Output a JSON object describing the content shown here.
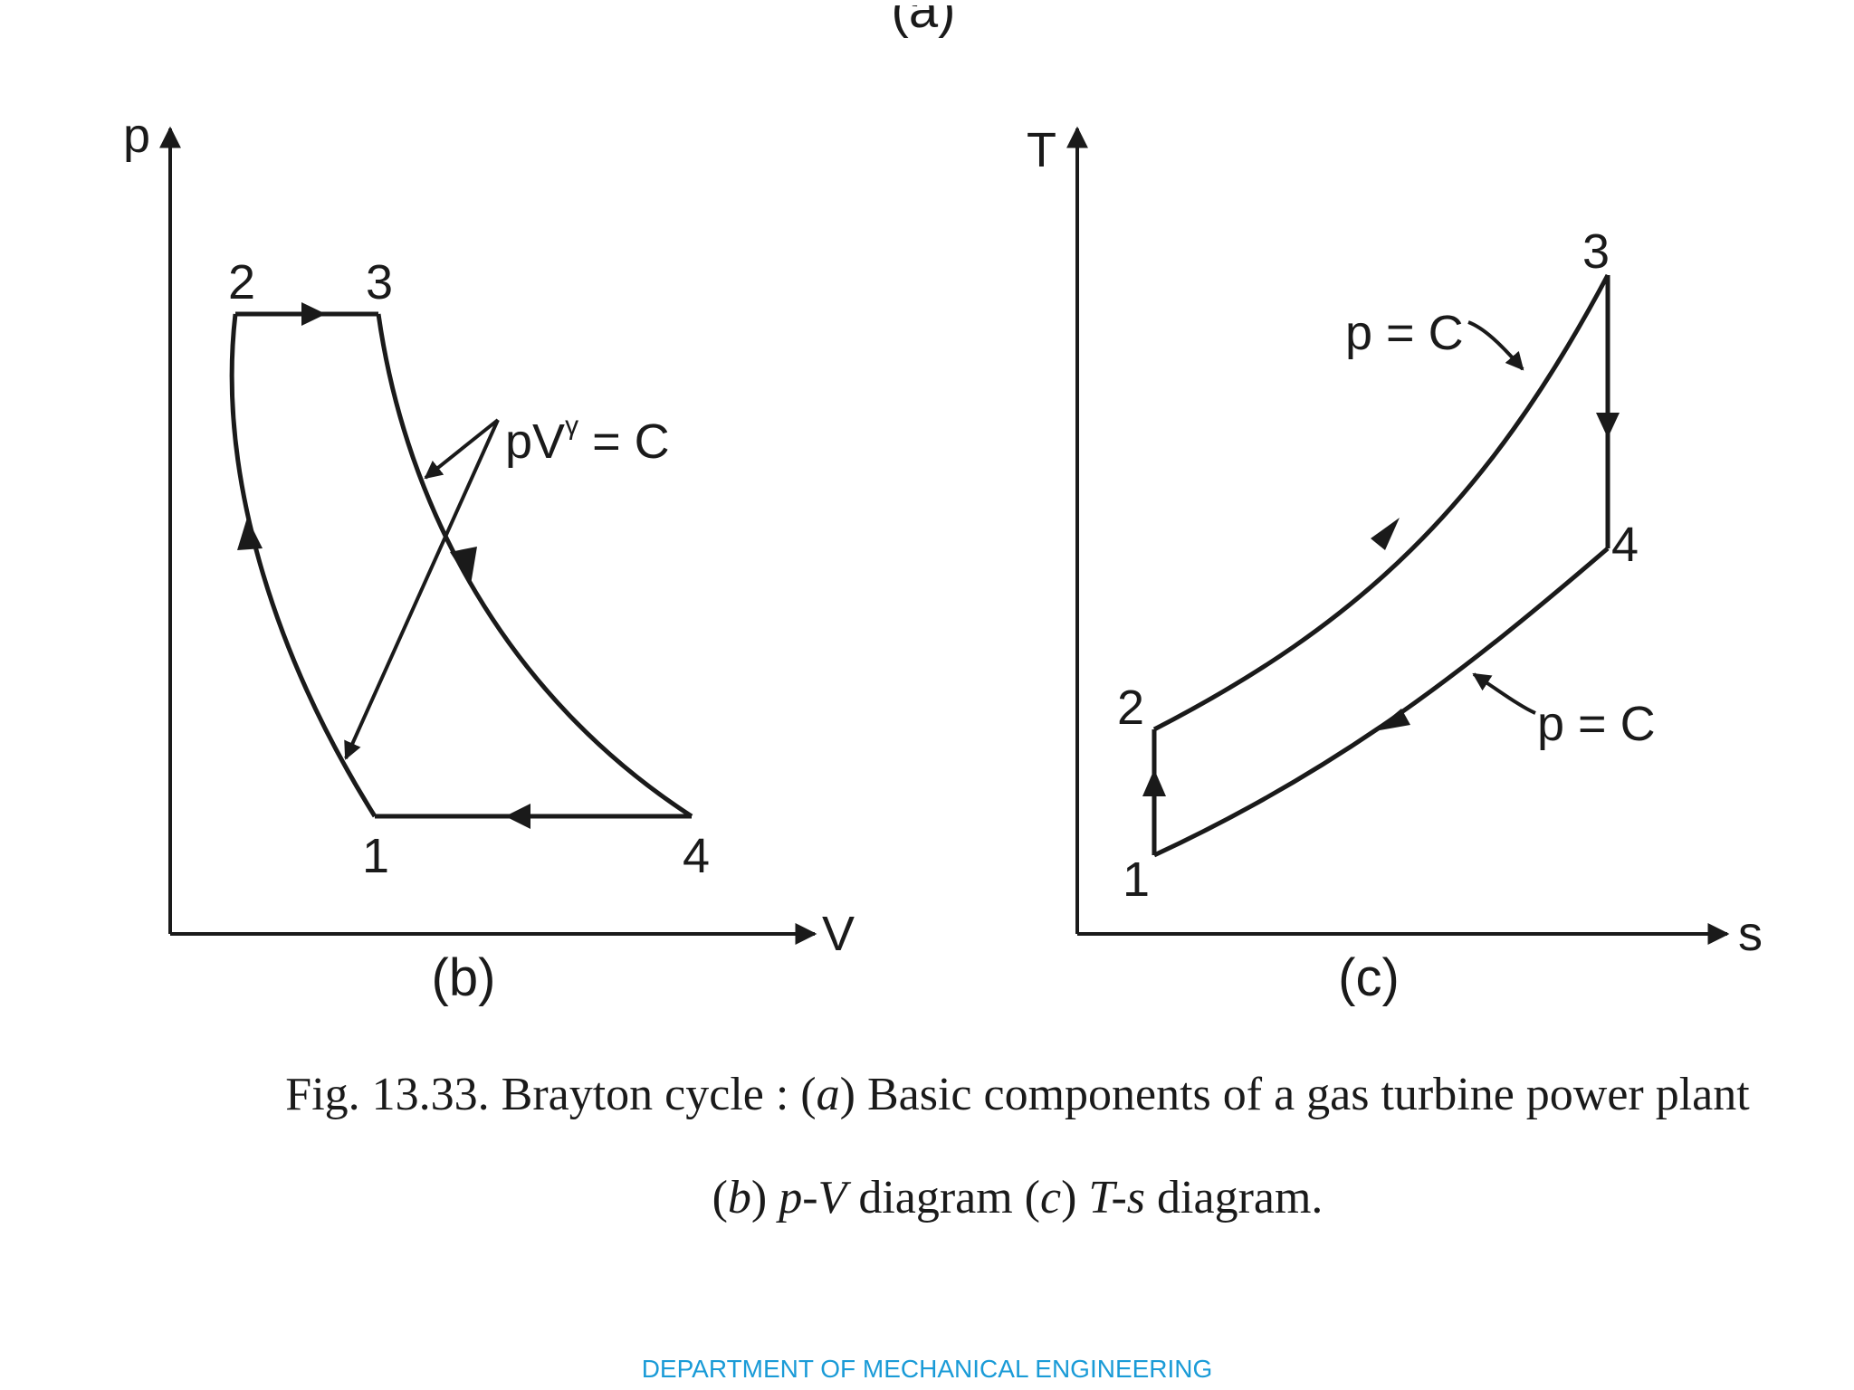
{
  "top_fragment": "(a)",
  "pv_diagram": {
    "axis_y": "p",
    "axis_x": "V",
    "points": [
      "1",
      "2",
      "3",
      "4"
    ],
    "annotation": "pV",
    "annotation_sup": "γ",
    "annotation_rest": " = C",
    "sublabel": "(b)"
  },
  "ts_diagram": {
    "axis_y": "T",
    "axis_x": "s",
    "points": [
      "1",
      "2",
      "3",
      "4"
    ],
    "annotation_upper": "p = C",
    "annotation_lower": "p = C",
    "sublabel": "(c)"
  },
  "caption": {
    "line1_prefix": "Fig. 13.33. Brayton cycle : (",
    "line1_italic": "a",
    "line1_suffix": ") Basic components of a gas turbine power plant",
    "line2_parts": [
      "(",
      "b",
      ") ",
      "p-V",
      " diagram (",
      "c",
      ") ",
      "T-s",
      " diagram."
    ]
  },
  "footer": {
    "text": "DEPARTMENT OF MECHANICAL ENGINEERING",
    "color": "#1a9bd7"
  },
  "colors": {
    "ink": "#1a1a1a"
  }
}
